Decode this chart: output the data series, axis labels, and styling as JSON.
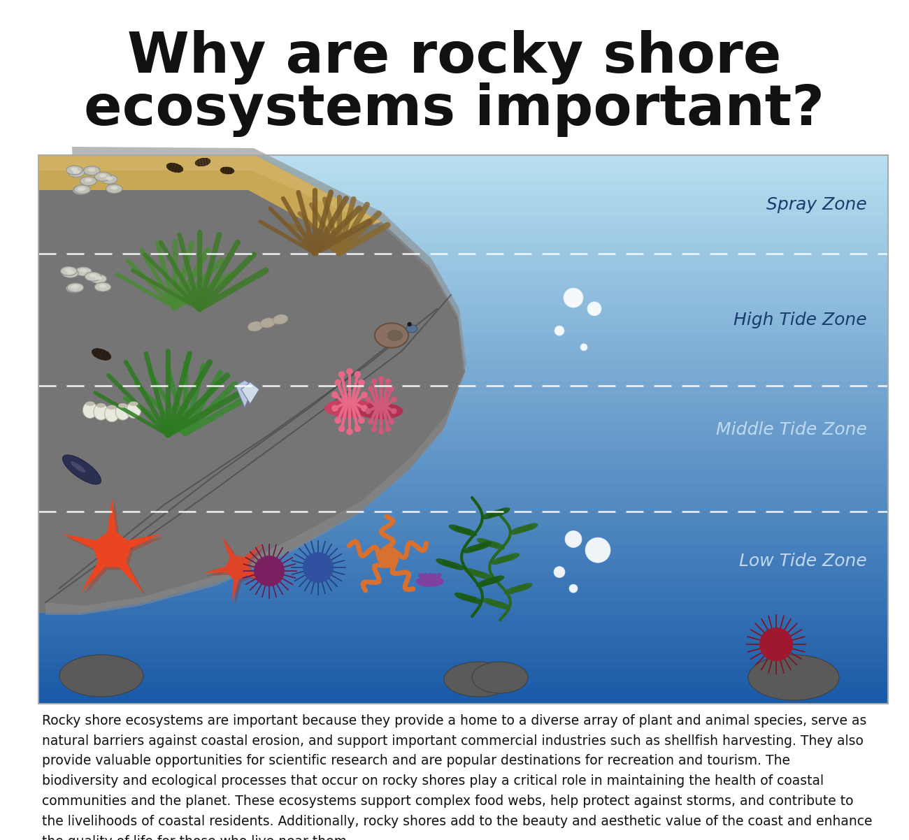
{
  "title_line1": "Why are rocky shore",
  "title_line2": "ecosystems important?",
  "title_fontsize": 58,
  "bg_color": "#ffffff",
  "zone_labels": [
    "Spray Zone",
    "High Tide Zone",
    "Middle Tide Zone",
    "Low Tide Zone"
  ],
  "zone_label_color": "#1a3d6e",
  "body_text": "Rocky shore ecosystems are important because they provide a home to a diverse array of plant and animal species, serve as\nnatural barriers against coastal erosion, and support important commercial industries such as shellfish harvesting. They also\nprovide valuable opportunities for scientific research and are popular destinations for recreation and tourism. The\nbiodiversity and ecological processes that occur on rocky shores play a critical role in maintaining the health of coastal\ncommunities and the planet. These ecosystems support complex food webs, help protect against storms, and contribute to\nthe livelihoods of coastal residents. Additionally, rocky shores add to the beauty and aesthetic value of the coast and enhance\nthe quality of life for those who live near them.",
  "body_fontsize": 13.5,
  "water_light": "#b8dff0",
  "water_mid": "#5090c8",
  "water_deep": "#2060a8",
  "rock_main": "#787878",
  "rock_dark": "#505050",
  "rock_light": "#909090",
  "sand_color": "#c8a855"
}
